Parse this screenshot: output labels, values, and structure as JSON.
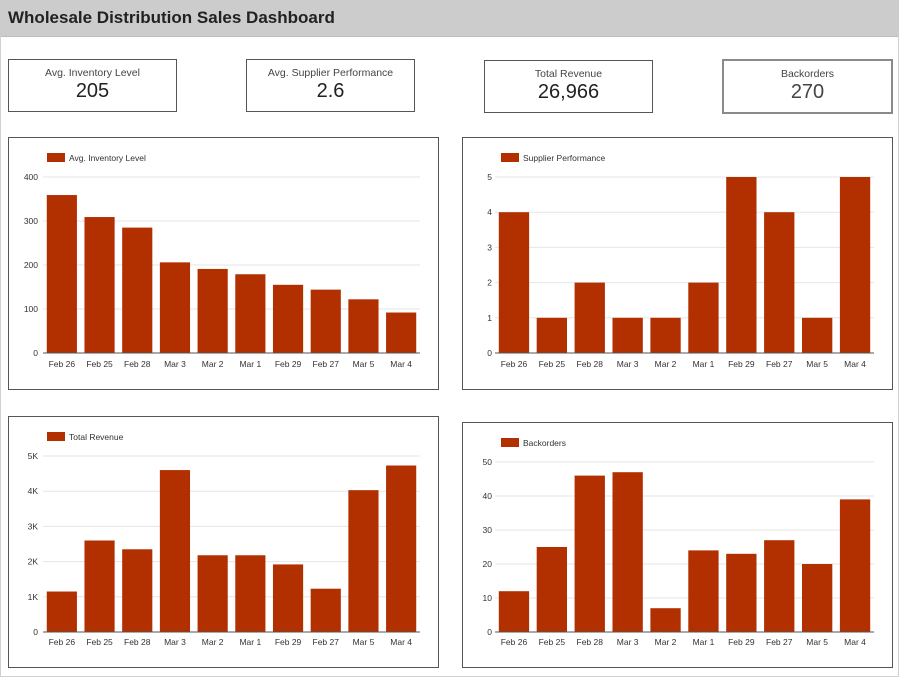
{
  "header": {
    "title": "Wholesale Distribution Sales Dashboard"
  },
  "kpis": [
    {
      "label": "Avg. Inventory Level",
      "value": "205"
    },
    {
      "label": "Avg. Supplier Performance",
      "value": "2.6"
    },
    {
      "label": "Total Revenue",
      "value": "26,966"
    },
    {
      "label": "Backorders",
      "value": "270"
    }
  ],
  "colors": {
    "bar": "#b23000",
    "grid": "#e6e6e6",
    "axis": "#555555"
  },
  "chart_data": [
    {
      "type": "bar",
      "title": "",
      "xlabel": "",
      "ylabel": "",
      "legend_position": "top-left",
      "grid": true,
      "categories": [
        "Feb 26",
        "Feb 25",
        "Feb 28",
        "Mar 3",
        "Mar 2",
        "Mar 1",
        "Feb 29",
        "Feb 27",
        "Mar 5",
        "Mar 4"
      ],
      "series": [
        {
          "name": "Avg. Inventory Level",
          "values": [
            359,
            309,
            285,
            206,
            191,
            179,
            155,
            144,
            122,
            92
          ]
        }
      ],
      "ylim": [
        0,
        400
      ],
      "yticks": [
        0,
        100,
        200,
        300,
        400
      ],
      "ytick_labels": [
        "0",
        "100",
        "200",
        "300",
        "400"
      ]
    },
    {
      "type": "bar",
      "title": "",
      "xlabel": "",
      "ylabel": "",
      "legend_position": "top-left",
      "grid": true,
      "categories": [
        "Feb 26",
        "Feb 25",
        "Feb 28",
        "Mar 3",
        "Mar 2",
        "Mar 1",
        "Feb 29",
        "Feb 27",
        "Mar 5",
        "Mar 4"
      ],
      "series": [
        {
          "name": "Supplier Performance",
          "values": [
            4,
            1,
            2,
            1,
            1,
            2,
            5,
            4,
            1,
            5
          ]
        }
      ],
      "ylim": [
        0,
        5
      ],
      "yticks": [
        0,
        1,
        2,
        3,
        4,
        5
      ],
      "ytick_labels": [
        "0",
        "1",
        "2",
        "3",
        "4",
        "5"
      ]
    },
    {
      "type": "bar",
      "title": "",
      "xlabel": "",
      "ylabel": "",
      "legend_position": "top-left",
      "grid": true,
      "categories": [
        "Feb 26",
        "Feb 25",
        "Feb 28",
        "Mar 3",
        "Mar 2",
        "Mar 1",
        "Feb 29",
        "Feb 27",
        "Mar 5",
        "Mar 4"
      ],
      "series": [
        {
          "name": "Total Revenue",
          "values": [
            1150,
            2600,
            2350,
            4600,
            2180,
            2180,
            1920,
            1230,
            4030,
            4730
          ]
        }
      ],
      "ylim": [
        0,
        5000
      ],
      "yticks": [
        0,
        1000,
        2000,
        3000,
        4000,
        5000
      ],
      "ytick_labels": [
        "0",
        "1K",
        "2K",
        "3K",
        "4K",
        "5K"
      ]
    },
    {
      "type": "bar",
      "title": "",
      "xlabel": "",
      "ylabel": "",
      "legend_position": "top-left",
      "grid": true,
      "categories": [
        "Feb 26",
        "Feb 25",
        "Feb 28",
        "Mar 3",
        "Mar 2",
        "Mar 1",
        "Feb 29",
        "Feb 27",
        "Mar 5",
        "Mar 4"
      ],
      "series": [
        {
          "name": "Backorders",
          "values": [
            12,
            25,
            46,
            47,
            7,
            24,
            23,
            27,
            20,
            39
          ]
        }
      ],
      "ylim": [
        0,
        50
      ],
      "yticks": [
        0,
        10,
        20,
        30,
        40,
        50
      ],
      "ytick_labels": [
        "0",
        "10",
        "20",
        "30",
        "40",
        "50"
      ]
    }
  ]
}
